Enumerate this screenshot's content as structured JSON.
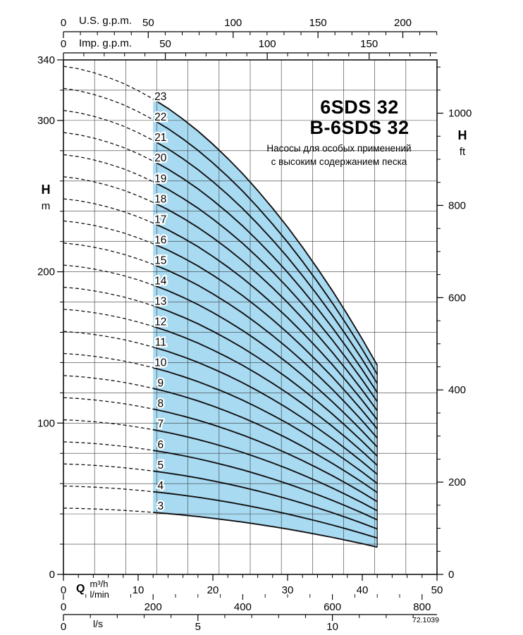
{
  "chart_data": {
    "type": "line",
    "title": "6SDS 32",
    "title_b": "B-6SDS 32",
    "subtitle": [
      "Насосы для особых применений",
      "с высоким содержанием песка"
    ],
    "code": "72.1039",
    "x_axis": {
      "quantity": "Q",
      "units": {
        "m3h": {
          "label": "m³/h",
          "min": 0,
          "max": 50,
          "major_ticks": [
            0,
            10,
            20,
            30,
            40,
            50
          ],
          "minor_step": 2
        },
        "lmin": {
          "label": "l/min",
          "ticks": [
            0,
            200,
            400,
            600,
            800
          ],
          "minor_step": 50,
          "to_m3h": 0.06
        },
        "ls": {
          "label": "l/s",
          "major_ticks": [
            0,
            5,
            10
          ],
          "minor_step": 1,
          "max": 13,
          "to_m3h": 3.6
        },
        "us_gpm": {
          "label": "U.S. g.p.m.",
          "major_ticks": [
            0,
            50,
            100,
            150,
            200
          ],
          "minor_step": 10,
          "max": 220,
          "to_m3h": 0.227125
        },
        "imp_gpm": {
          "label": "Imp. g.p.m.",
          "major_ticks": [
            0,
            50,
            100,
            150
          ],
          "minor_step": 10,
          "max": 183,
          "to_m3h": 0.272766
        }
      }
    },
    "y_axis": {
      "quantity": "H",
      "units": {
        "m": {
          "label": "m",
          "min": 0,
          "max": 340,
          "major_ticks": [
            0,
            100,
            200,
            300,
            340
          ],
          "minor_step": 20
        },
        "ft": {
          "label": "ft",
          "major_ticks": [
            0,
            200,
            400,
            600,
            800,
            1000
          ],
          "minor_step": 50,
          "max": 1100,
          "to_m": 0.3048
        }
      }
    },
    "series_stages": [
      3,
      4,
      5,
      6,
      7,
      8,
      9,
      10,
      11,
      12,
      13,
      14,
      15,
      16,
      17,
      18,
      19,
      20,
      21,
      22,
      23
    ],
    "per_stage_head_curve": {
      "q_m3h": [
        0,
        2,
        4,
        6,
        8,
        10,
        12,
        14,
        16,
        18,
        20,
        22,
        24,
        26,
        28,
        30,
        32,
        34,
        36,
        38,
        40,
        42
      ],
      "head_m": [
        14.6,
        14.53,
        14.42,
        14.28,
        14.11,
        13.9,
        13.66,
        13.39,
        13.08,
        12.74,
        12.36,
        11.95,
        11.51,
        11.03,
        10.52,
        9.98,
        9.4,
        8.79,
        8.15,
        7.47,
        6.76,
        6.01
      ]
    },
    "operating_range_q_m3h": [
      12,
      42
    ],
    "dashed_range_q_m3h": [
      0,
      12
    ],
    "curve_label_q_m3h": 13,
    "colors": {
      "operating_fill": "#a8daf2",
      "curve": "#111111",
      "grid": "#3a3a3a",
      "axis": "#000000"
    },
    "grid": {
      "vertical_divisions": 12,
      "horizontal_step_m": 20
    }
  }
}
